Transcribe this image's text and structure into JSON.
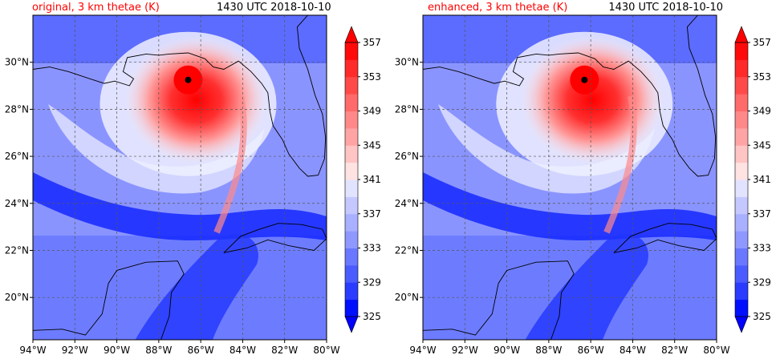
{
  "colors": {
    "title_left": "#ff0000",
    "title_right": "#000000",
    "land_outline": "#000000",
    "grid": "#555555"
  },
  "chart_data": [
    {
      "type": "heatmap",
      "title_left": "original, 3 km thetae (K)",
      "title_right": "1430 UTC 2018-10-10",
      "x_ticks": [
        "94°W",
        "92°W",
        "90°W",
        "88°W",
        "86°W",
        "84°W",
        "82°W",
        "80°W"
      ],
      "y_ticks": [
        "20°N",
        "22°N",
        "24°N",
        "26°N",
        "28°N",
        "30°N"
      ],
      "x_values": [
        -94,
        -92,
        -90,
        -88,
        -86,
        -84,
        -82,
        -80
      ],
      "y_values": [
        20,
        22,
        24,
        26,
        28,
        30
      ],
      "xlim": [
        -94,
        -80
      ],
      "ylim": [
        18.2,
        32
      ],
      "grid": true,
      "storm_center": {
        "lon": -86.6,
        "lat": 29.25
      },
      "colorbar": {
        "levels": [
          325,
          327,
          329,
          331,
          333,
          335,
          337,
          339,
          341,
          343,
          345,
          347,
          349,
          351,
          353,
          355,
          357
        ],
        "tick_labels": [
          "325",
          "329",
          "333",
          "337",
          "341",
          "345",
          "349",
          "353",
          "357"
        ],
        "extend": "both"
      }
    },
    {
      "type": "heatmap",
      "title_left": "enhanced, 3 km thetae (K)",
      "title_right": "1430 UTC 2018-10-10",
      "x_ticks": [
        "94°W",
        "92°W",
        "90°W",
        "88°W",
        "86°W",
        "84°W",
        "82°W",
        "80°W"
      ],
      "y_ticks": [
        "20°N",
        "22°N",
        "24°N",
        "26°N",
        "28°N",
        "30°N"
      ],
      "x_values": [
        -94,
        -92,
        -90,
        -88,
        -86,
        -84,
        -82,
        -80
      ],
      "y_values": [
        20,
        22,
        24,
        26,
        28,
        30
      ],
      "xlim": [
        -94,
        -80
      ],
      "ylim": [
        18.2,
        32
      ],
      "grid": true,
      "storm_center": {
        "lon": -86.3,
        "lat": 29.25
      },
      "colorbar": {
        "levels": [
          325,
          327,
          329,
          331,
          333,
          335,
          337,
          339,
          341,
          343,
          345,
          347,
          349,
          351,
          353,
          355,
          357
        ],
        "tick_labels": [
          "325",
          "329",
          "333",
          "337",
          "341",
          "345",
          "349",
          "353",
          "357"
        ],
        "extend": "both"
      }
    }
  ]
}
